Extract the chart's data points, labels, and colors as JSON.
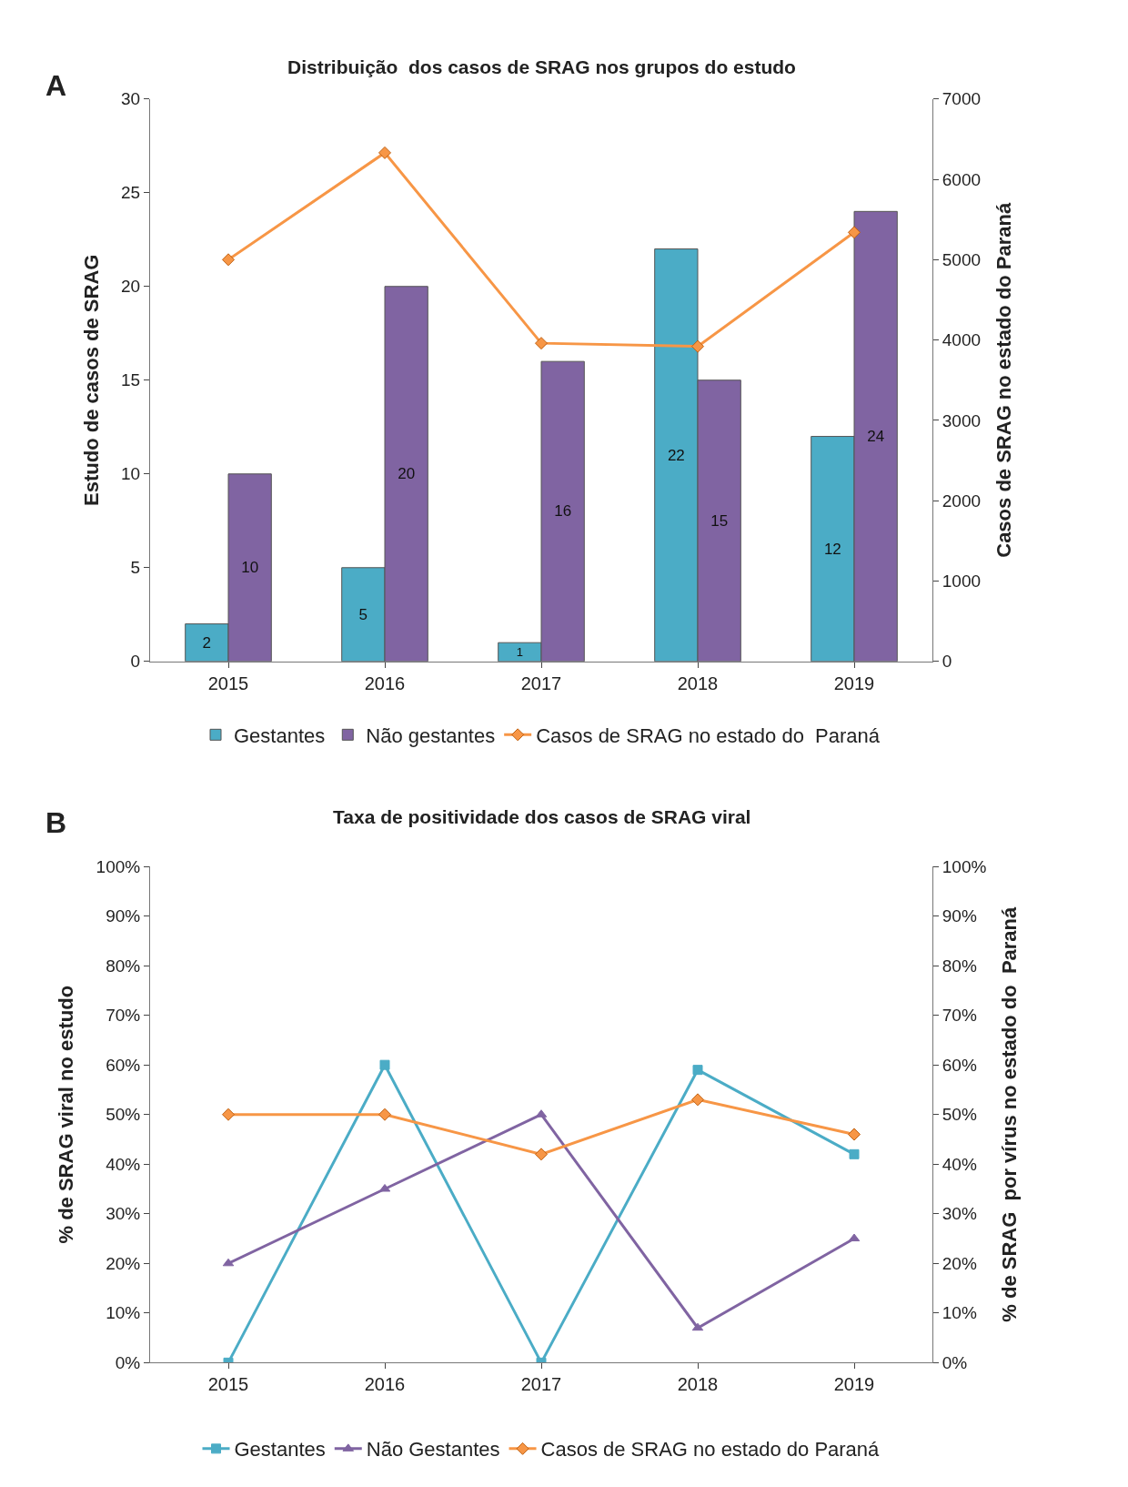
{
  "chart_data": [
    {
      "type": "bar",
      "title": "Distribuição  dos casos de SRAG nos grupos do estudo",
      "categories": [
        "2015",
        "2016",
        "2017",
        "2018",
        "2019"
      ],
      "ylabel": "Estudo de casos de SRAG",
      "y2label": "Casos de SRAG no estado do Paraná",
      "series": [
        {
          "name": "Gestantes",
          "color": "#4bacc6",
          "values": [
            2,
            5,
            1,
            22,
            12
          ],
          "value_labels": [
            "2",
            "5",
            "1",
            "22",
            "12"
          ]
        },
        {
          "name": "Não gestantes",
          "color": "#8064a2",
          "values": [
            10,
            20,
            16,
            15,
            24
          ],
          "value_labels": [
            "10",
            "20",
            "16",
            "15",
            "24"
          ]
        },
        {
          "name": "Casos de SRAG no estado do  Paraná",
          "type": "line",
          "axis": "y2",
          "marker": "diamond",
          "color": "#f79646",
          "values": [
            5000,
            6330,
            3960,
            3920,
            5340
          ]
        }
      ],
      "ylim": [
        0,
        30
      ],
      "yticks": [
        0,
        5,
        10,
        15,
        20,
        25,
        30
      ],
      "y2lim": [
        0,
        7000
      ],
      "y2ticks": [
        0,
        1000,
        2000,
        3000,
        4000,
        5000,
        6000,
        7000
      ],
      "legend": "bottom",
      "annotations": [
        "A"
      ]
    },
    {
      "type": "line",
      "title": "Taxa de positividade dos casos de SRAG viral",
      "categories": [
        "2015",
        "2016",
        "2017",
        "2018",
        "2019"
      ],
      "ylabel": "% de SRAG viral no estudo",
      "y2label": "% de SRAG  por vírus no estado do  Paraná",
      "series": [
        {
          "name": "Gestantes",
          "color": "#4bacc6",
          "marker": "square",
          "values": [
            0,
            60,
            0,
            59,
            42
          ]
        },
        {
          "name": "Não Gestantes",
          "color": "#8064a2",
          "marker": "triangle",
          "values": [
            20,
            35,
            50,
            7,
            25
          ]
        },
        {
          "name": "Casos de SRAG no estado do Paraná",
          "axis": "y2",
          "color": "#f79646",
          "marker": "diamond",
          "values": [
            50,
            50,
            42,
            53,
            46
          ]
        }
      ],
      "ylim": [
        0,
        100
      ],
      "yticks": [
        {
          "value": 0,
          "label": "0%"
        },
        {
          "value": 10,
          "label": "10%"
        },
        {
          "value": 20,
          "label": "20%"
        },
        {
          "value": 30,
          "label": "30%"
        },
        {
          "value": 40,
          "label": "40%"
        },
        {
          "value": 50,
          "label": "50%"
        },
        {
          "value": 60,
          "label": "60%"
        },
        {
          "value": 70,
          "label": "70%"
        },
        {
          "value": 80,
          "label": "80%"
        },
        {
          "value": 90,
          "label": "90%"
        },
        {
          "value": 100,
          "label": "100%"
        }
      ],
      "y2lim": [
        0,
        100
      ],
      "y2ticks": [
        {
          "value": 0,
          "label": "0%"
        },
        {
          "value": 10,
          "label": "10%"
        },
        {
          "value": 20,
          "label": "20%"
        },
        {
          "value": 30,
          "label": "30%"
        },
        {
          "value": 40,
          "label": "40%"
        },
        {
          "value": 50,
          "label": "50%"
        },
        {
          "value": 60,
          "label": "60%"
        },
        {
          "value": 70,
          "label": "70%"
        },
        {
          "value": 80,
          "label": "80%"
        },
        {
          "value": 90,
          "label": "90%"
        },
        {
          "value": 100,
          "label": "100%"
        }
      ],
      "legend": "bottom",
      "annotations": [
        "B"
      ]
    }
  ]
}
